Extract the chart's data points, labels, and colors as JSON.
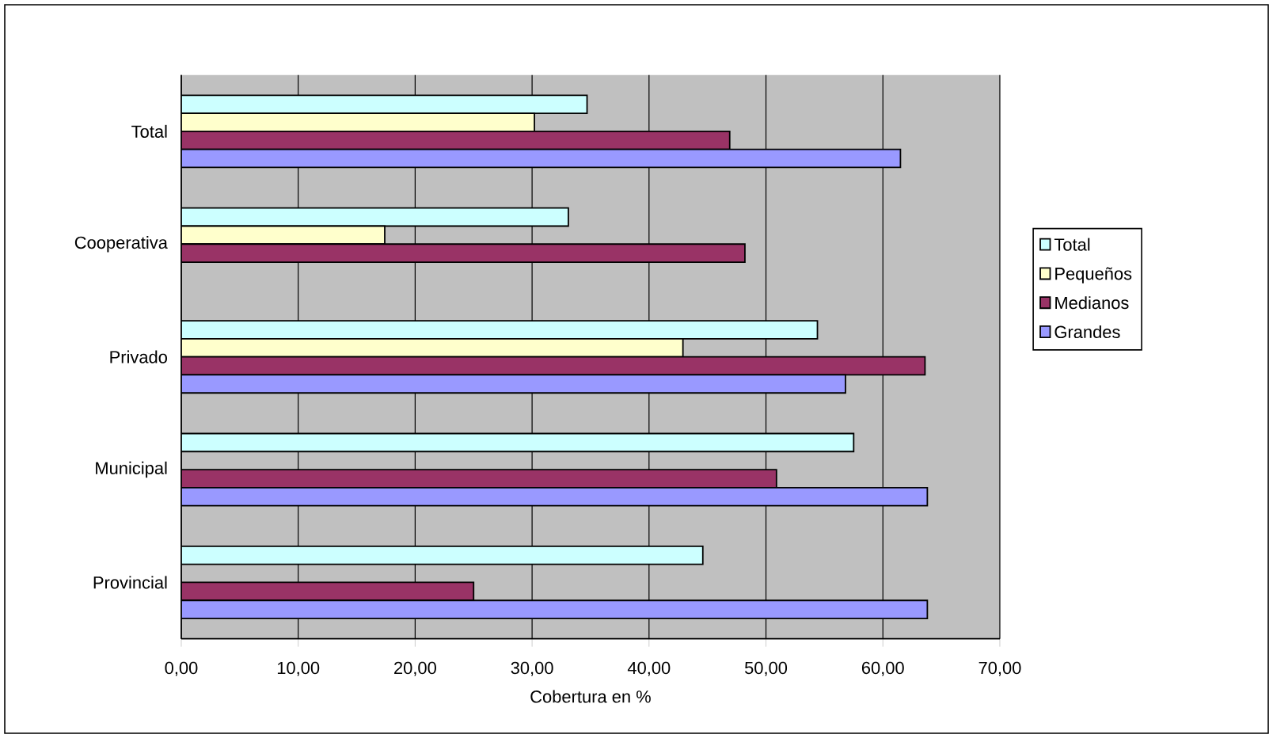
{
  "chart_data": {
    "type": "bar",
    "orientation": "horizontal",
    "xlabel": "Cobertura en %",
    "categories": [
      "Total",
      "Cooperativa",
      "Privado",
      "Municipal",
      "Provincial"
    ],
    "series": [
      {
        "name": "Total",
        "color": "#ccffff",
        "values": [
          34.7,
          33.1,
          54.4,
          57.5,
          44.6
        ]
      },
      {
        "name": "Pequeños",
        "color": "#ffffcc",
        "values": [
          30.2,
          17.4,
          42.9,
          null,
          null
        ]
      },
      {
        "name": "Medianos",
        "color": "#993366",
        "values": [
          46.9,
          48.2,
          63.6,
          50.9,
          25.0
        ]
      },
      {
        "name": "Grandes",
        "color": "#9999ff",
        "values": [
          61.5,
          null,
          56.8,
          63.8,
          63.8
        ]
      }
    ],
    "xlim": [
      0,
      70
    ],
    "xticks": [
      {
        "value": 0,
        "label": "0,00"
      },
      {
        "value": 10,
        "label": "10,00"
      },
      {
        "value": 20,
        "label": "20,00"
      },
      {
        "value": 30,
        "label": "30,00"
      },
      {
        "value": 40,
        "label": "40,00"
      },
      {
        "value": 50,
        "label": "50,00"
      },
      {
        "value": 60,
        "label": "60,00"
      },
      {
        "value": 70,
        "label": "70,00"
      }
    ],
    "grid": "x",
    "legend": "right"
  }
}
